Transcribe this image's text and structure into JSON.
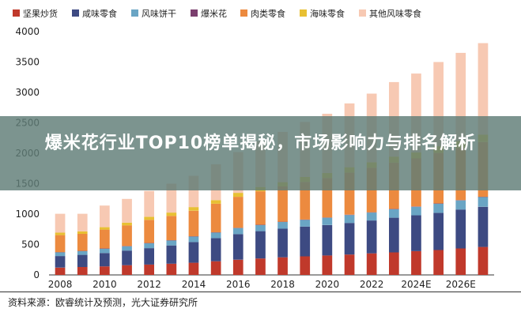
{
  "banner": {
    "title": "爆米花行业TOP10榜单揭秘，市场影响力与排名解析"
  },
  "source": "资料来源：欧睿统计及预测，光大证券研究所",
  "chart_data": {
    "type": "bar",
    "stacked": true,
    "title": "",
    "xlabel": "",
    "ylabel": "",
    "ylim": [
      0,
      4000
    ],
    "yticks": [
      0,
      500,
      1000,
      1500,
      2000,
      2500,
      3000,
      3500,
      4000
    ],
    "grid": false,
    "legend_position": "top",
    "categories": [
      "2008",
      "2009",
      "2010",
      "2011",
      "2012",
      "2013",
      "2014",
      "2015",
      "2016",
      "2017",
      "2018",
      "2019",
      "2020",
      "2021",
      "2022",
      "2023",
      "2024E",
      "2025E",
      "2026E",
      "2027E"
    ],
    "x_tick_labels": [
      "2008",
      "2010",
      "2012",
      "2014",
      "2016",
      "2018",
      "2020",
      "2022",
      "2024E",
      "2026E"
    ],
    "series": [
      {
        "name": "坚果炒货",
        "color": "#c0392b",
        "values": [
          120,
          130,
          140,
          160,
          170,
          185,
          200,
          225,
          250,
          270,
          290,
          305,
          320,
          335,
          355,
          370,
          390,
          410,
          435,
          460
        ]
      },
      {
        "name": "咸味零食",
        "color": "#3d4a82",
        "values": [
          190,
          200,
          220,
          240,
          270,
          300,
          340,
          380,
          420,
          450,
          470,
          490,
          500,
          520,
          540,
          570,
          590,
          610,
          640,
          660
        ]
      },
      {
        "name": "风味饼干",
        "color": "#6aa5c4",
        "values": [
          60,
          60,
          70,
          70,
          80,
          80,
          90,
          90,
          100,
          100,
          110,
          110,
          120,
          130,
          130,
          140,
          140,
          150,
          150,
          160
        ]
      },
      {
        "name": "爆米花",
        "color": "#7b3f6e",
        "values": [
          5,
          5,
          5,
          5,
          5,
          5,
          5,
          5,
          5,
          5,
          5,
          5,
          5,
          5,
          5,
          5,
          5,
          5,
          5,
          5
        ]
      },
      {
        "name": "肉类零食",
        "color": "#ec8a3f",
        "values": [
          280,
          280,
          310,
          340,
          380,
          400,
          420,
          470,
          510,
          550,
          580,
          620,
          650,
          690,
          730,
          760,
          790,
          830,
          860,
          900
        ]
      },
      {
        "name": "海味零食",
        "color": "#e8c033",
        "values": [
          40,
          40,
          40,
          45,
          50,
          55,
          60,
          60,
          65,
          70,
          70,
          80,
          80,
          90,
          90,
          100,
          100,
          110,
          110,
          120
        ]
      },
      {
        "name": "其他风味零食",
        "color": "#f7c9b3",
        "values": [
          310,
          290,
          355,
          390,
          425,
          475,
          515,
          590,
          670,
          755,
          825,
          905,
          975,
          1050,
          1130,
          1225,
          1295,
          1385,
          1450,
          1505
        ]
      }
    ]
  }
}
